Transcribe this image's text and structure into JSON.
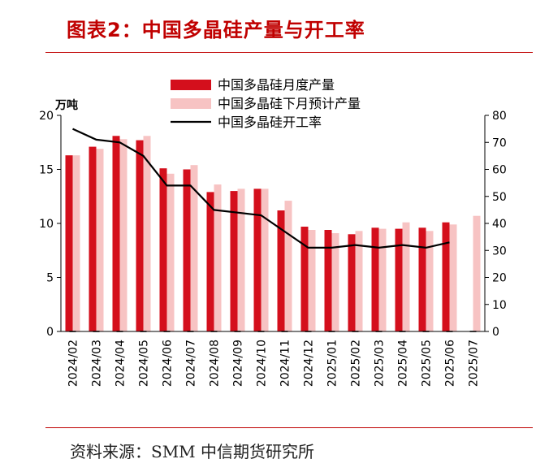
{
  "title": "图表2：中国多晶硅产量与开工率",
  "source": "资料来源：SMM  中信期货研究所",
  "chart_data": {
    "type": "bar",
    "left_axis_unit": "万吨",
    "categories": [
      "2024/02",
      "2024/03",
      "2024/04",
      "2024/05",
      "2024/06",
      "2024/07",
      "2024/08",
      "2024/09",
      "2024/10",
      "2024/11",
      "2024/12",
      "2025/01",
      "2025/02",
      "2025/03",
      "2025/04",
      "2025/05",
      "2025/06",
      "2025/07"
    ],
    "series": [
      {
        "name": "中国多晶硅月度产量",
        "kind": "bar",
        "axis": "left",
        "color": "#d40f1c",
        "values": [
          16.3,
          17.1,
          18.1,
          17.7,
          15.1,
          15.0,
          12.9,
          13.0,
          13.2,
          11.2,
          9.7,
          9.4,
          9.0,
          9.6,
          9.5,
          9.6,
          10.1,
          null
        ]
      },
      {
        "name": "中国多晶硅下月预计产量",
        "kind": "bar",
        "axis": "left",
        "color": "#f7c3c3",
        "values": [
          16.3,
          16.9,
          17.8,
          18.1,
          14.6,
          15.4,
          13.6,
          13.2,
          13.2,
          12.1,
          9.4,
          9.1,
          9.3,
          9.5,
          10.1,
          9.3,
          9.9,
          10.7
        ]
      },
      {
        "name": "中国多晶硅开工率",
        "kind": "line",
        "axis": "right",
        "color": "#000000",
        "values": [
          75,
          71,
          70,
          65,
          54,
          54,
          45,
          44,
          43,
          37,
          31,
          31,
          32,
          31,
          32,
          31,
          33,
          null
        ]
      }
    ],
    "left_axis": {
      "min": 0,
      "max": 20,
      "ticks": [
        0,
        5,
        10,
        15,
        20
      ]
    },
    "right_axis": {
      "min": 0,
      "max": 80,
      "ticks": [
        0,
        10,
        20,
        30,
        40,
        50,
        60,
        70,
        80
      ]
    },
    "legend": {
      "position": "top"
    }
  }
}
